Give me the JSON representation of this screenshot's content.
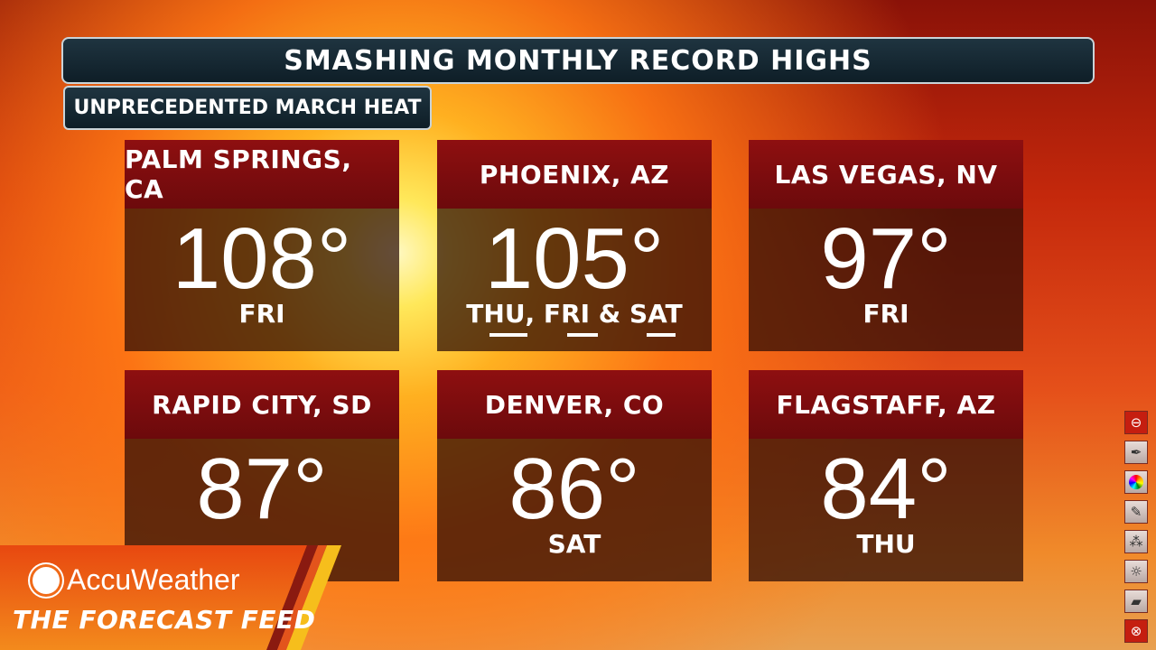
{
  "header": {
    "title": "SMASHING MONTHLY RECORD HIGHS",
    "subtitle": "UNPRECEDENTED MARCH HEAT"
  },
  "cards": [
    {
      "city": "PALM SPRINGS, CA",
      "temp": "108°",
      "day": "FRI"
    },
    {
      "city": "PHOENIX, AZ",
      "temp": "105°",
      "day": "THU, FRI & SAT"
    },
    {
      "city": "LAS VEGAS, NV",
      "temp": "97°",
      "day": "FRI"
    },
    {
      "city": "RAPID CITY, SD",
      "temp": "87°",
      "day": ""
    },
    {
      "city": "DENVER, CO",
      "temp": "86°",
      "day": "SAT"
    },
    {
      "city": "FLAGSTAFF, AZ",
      "temp": "84°",
      "day": "THU"
    }
  ],
  "brand": {
    "logo": "AccuWeather",
    "show": "THE FORECAST FEED"
  },
  "toolbar": {
    "icons": [
      "minus-circle-icon",
      "pen-icon",
      "color-wheel-icon",
      "pencil-icon",
      "spray-icon",
      "brightness-icon",
      "eraser-icon",
      "close-circle-icon"
    ]
  }
}
